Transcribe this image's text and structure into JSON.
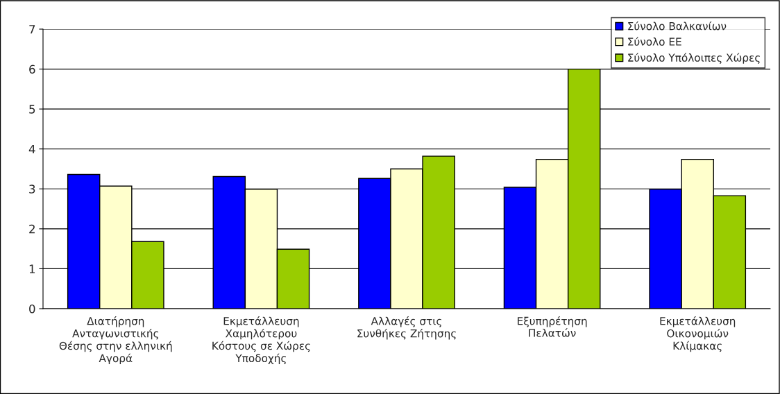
{
  "chart_data": {
    "type": "bar",
    "categories": [
      "Διατήρηση\nΑνταγωνιστικής\nΘέσης στην ελληνική\nΑγορά",
      "Εκμετάλλευση\nΧαμηλότερου\nΚόστους σε Χώρες\nΥποδοχής",
      "Αλλαγές στις\nΣυνθήκες Ζήτησης",
      "Εξυπηρέτηση\nΠελατών",
      "Εκμετάλλευση\nΟικονομιών\nΚλίμακας"
    ],
    "series": [
      {
        "name": "Σύνολο Βαλκανίων",
        "color": "#0000ff",
        "values": [
          3.36,
          3.31,
          3.26,
          3.04,
          2.99
        ]
      },
      {
        "name": "Σύνολο ΕΕ",
        "color": "#ffffcc",
        "values": [
          3.07,
          2.99,
          3.5,
          3.74,
          3.74
        ]
      },
      {
        "name": "Σύνολο Υπόλοιπες Χώρες",
        "color": "#99cc00",
        "values": [
          1.68,
          1.49,
          3.82,
          6.0,
          2.83
        ]
      }
    ],
    "ylim": [
      0,
      7
    ],
    "yticks": [
      0,
      1,
      2,
      3,
      4,
      5,
      6,
      7
    ],
    "grid": "y",
    "legend": "top right"
  }
}
